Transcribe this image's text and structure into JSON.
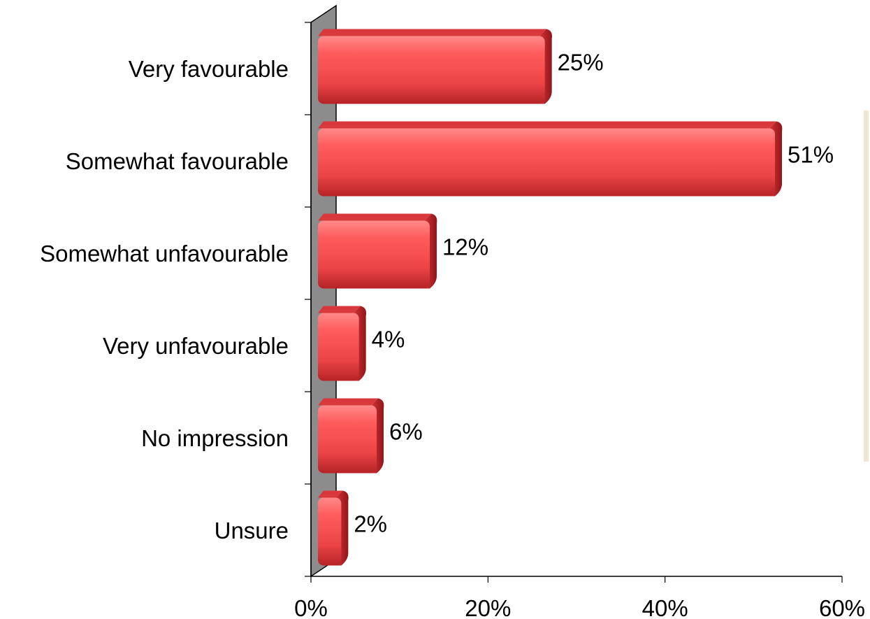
{
  "chart_data": {
    "type": "bar",
    "orientation": "horizontal",
    "categories": [
      "Very favourable",
      "Somewhat favourable",
      "Somewhat unfavourable",
      "Very unfavourable",
      "No impression",
      "Unsure"
    ],
    "values": [
      25,
      51,
      12,
      4,
      6,
      2
    ],
    "value_labels": [
      "25%",
      "51%",
      "12%",
      "4%",
      "6%",
      "2%"
    ],
    "xlim": [
      0,
      60
    ],
    "xticks": [
      0,
      20,
      40,
      60
    ],
    "xtick_labels": [
      "0%",
      "20%",
      "40%",
      "60%"
    ],
    "title": "",
    "xlabel": "",
    "ylabel": "",
    "grid": false,
    "bar_color": "#f0474a",
    "wall_color": "#8c8c8c"
  }
}
